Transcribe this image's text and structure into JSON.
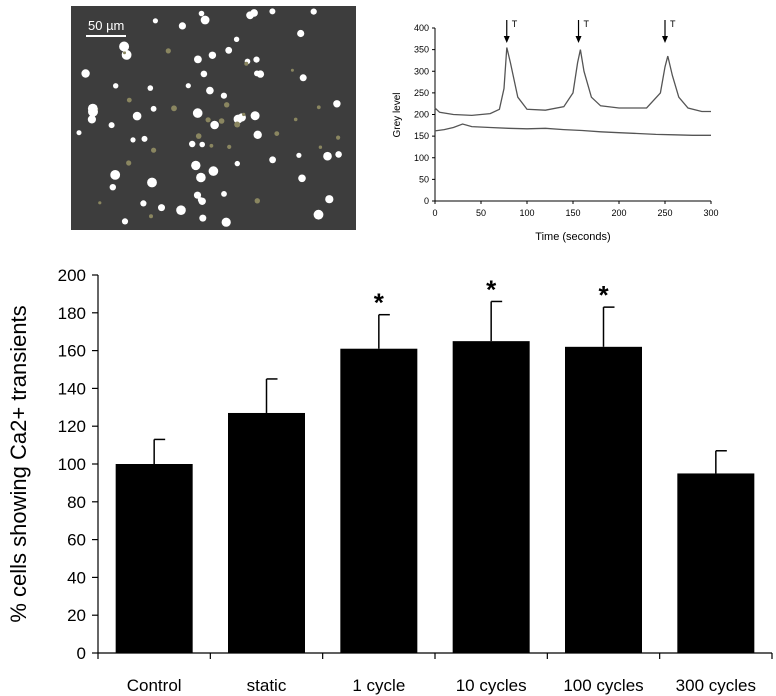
{
  "micrograph": {
    "scale_label": "50 µm",
    "background": "#3d3d3d",
    "cell_color": "#ffffff",
    "dim_cell_color": "#8a8660"
  },
  "trace_chart": {
    "type": "line",
    "xlabel": "Time (seconds)",
    "ylabel": "Grey level",
    "xlim": [
      0,
      300
    ],
    "ylim": [
      0,
      400
    ],
    "xticks": [
      0,
      50,
      100,
      150,
      200,
      250,
      300
    ],
    "yticks": [
      0,
      50,
      100,
      150,
      200,
      250,
      300,
      350,
      400
    ],
    "marker_label": "T",
    "markers_x": [
      78,
      156,
      250
    ],
    "series": [
      {
        "x": [
          0,
          5,
          20,
          40,
          60,
          70,
          75,
          78,
          82,
          90,
          100,
          120,
          140,
          150,
          155,
          158,
          162,
          170,
          180,
          200,
          230,
          245,
          250,
          253,
          258,
          265,
          275,
          290,
          300
        ],
        "y": [
          215,
          205,
          200,
          198,
          202,
          212,
          260,
          355,
          320,
          240,
          212,
          210,
          218,
          250,
          320,
          350,
          300,
          240,
          220,
          215,
          215,
          250,
          310,
          335,
          290,
          240,
          215,
          207,
          207
        ]
      },
      {
        "x": [
          0,
          10,
          20,
          30,
          40,
          60,
          80,
          100,
          120,
          140,
          160,
          180,
          200,
          220,
          240,
          260,
          280,
          300
        ],
        "y": [
          162,
          165,
          170,
          178,
          172,
          170,
          168,
          167,
          168,
          165,
          163,
          160,
          158,
          156,
          154,
          153,
          152,
          152
        ]
      }
    ]
  },
  "chart_data": {
    "type": "bar",
    "categories": [
      "Control",
      "static",
      "1 cycle",
      "10 cycles",
      "100 cycles",
      "300 cycles"
    ],
    "values": [
      100,
      127,
      161,
      165,
      162,
      95
    ],
    "errors": [
      13,
      18,
      18,
      21,
      21,
      12
    ],
    "significant": [
      false,
      false,
      true,
      true,
      true,
      false
    ],
    "significance_symbol": "*",
    "xlabel": "",
    "ylabel": "% cells showing Ca2+ transients",
    "ylim": [
      0,
      200
    ],
    "yticks": [
      0,
      20,
      40,
      60,
      80,
      100,
      120,
      140,
      160,
      180,
      200
    ],
    "bar_color": "#000000"
  }
}
